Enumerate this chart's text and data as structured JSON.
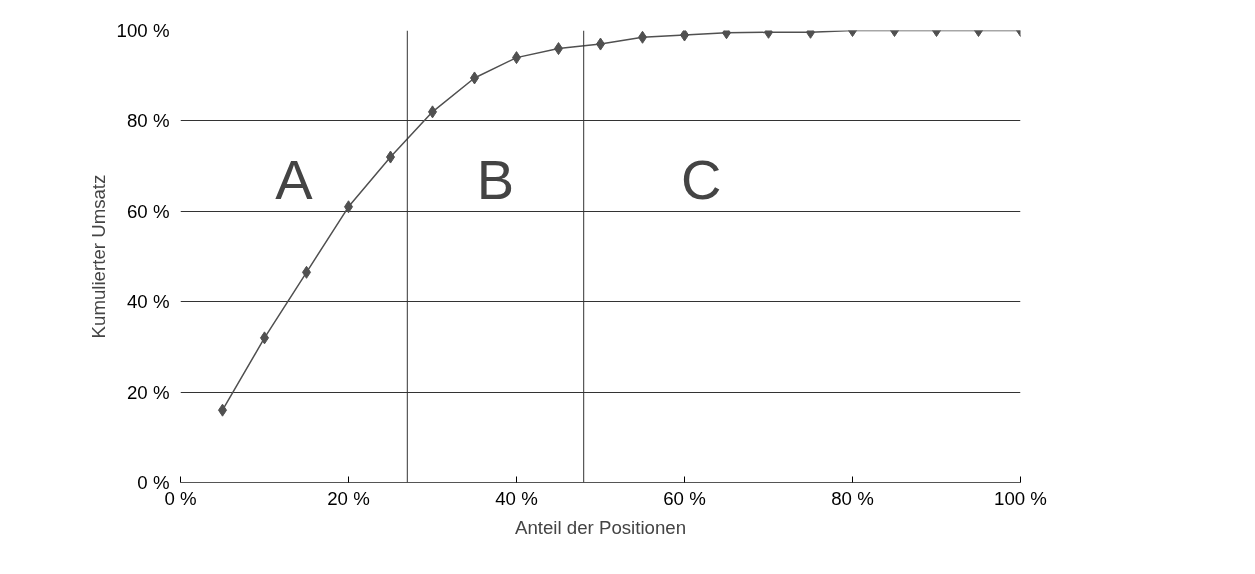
{
  "chart_data": {
    "type": "line",
    "xlabel": "Anteil der Positionen",
    "ylabel": "Kumulierter Umsatz",
    "x": [
      5,
      10,
      15,
      20,
      25,
      30,
      35,
      40,
      45,
      50,
      55,
      60,
      65,
      70,
      75,
      80,
      85,
      90,
      95,
      100
    ],
    "series": [
      {
        "color": "#505050",
        "values": [
          16,
          32,
          46.5,
          61,
          72,
          82,
          89.5,
          94,
          96,
          97,
          98.5,
          99,
          99.5,
          99.6,
          99.6,
          100,
          100,
          100,
          100,
          100
        ]
      }
    ],
    "xlim": [
      0,
      100
    ],
    "ylim": [
      0,
      100
    ],
    "xticks": [
      {
        "value": 0,
        "label": "0 %"
      },
      {
        "value": 20,
        "label": "20 %"
      },
      {
        "value": 40,
        "label": "40 %"
      },
      {
        "value": 60,
        "label": "60 %"
      },
      {
        "value": 80,
        "label": "80 %"
      },
      {
        "value": 100,
        "label": "100 %"
      }
    ],
    "yticks": [
      {
        "value": 0,
        "label": "0 %"
      },
      {
        "value": 20,
        "label": "20 %"
      },
      {
        "value": 40,
        "label": "40 %"
      },
      {
        "value": 60,
        "label": "60 %"
      },
      {
        "value": 80,
        "label": "80 %"
      },
      {
        "value": 100,
        "label": "100 %"
      }
    ],
    "ref_lines": [
      {
        "axis": "x",
        "value": 27
      },
      {
        "axis": "x",
        "value": 48
      }
    ],
    "annotations": [
      "A",
      "B",
      "C"
    ],
    "grid": "y",
    "marker": "diamond",
    "line_style": "solid"
  }
}
